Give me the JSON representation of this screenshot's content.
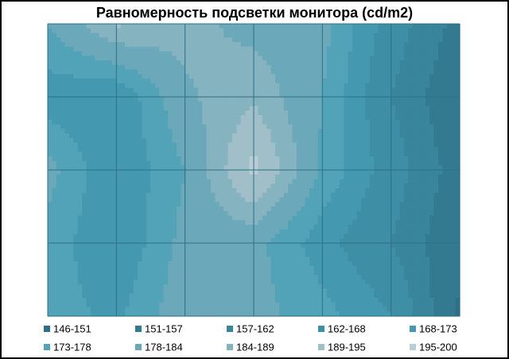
{
  "chart_data": {
    "type": "contour",
    "title": "Равномерность  подсветки монитора (cd/m2)",
    "z": [
      [
        178,
        190,
        186,
        182,
        180,
        165,
        155
      ],
      [
        170,
        168,
        183,
        188,
        178,
        162,
        152
      ],
      [
        180,
        168,
        178,
        197,
        177,
        165,
        154
      ],
      [
        176,
        168,
        180,
        180,
        170,
        162,
        152
      ],
      [
        175,
        172,
        182,
        180,
        175,
        168,
        150
      ]
    ],
    "bands": [
      {
        "min": 146,
        "max": 151,
        "label": "146-151",
        "color": "#2e6e86"
      },
      {
        "min": 151,
        "max": 157,
        "label": "151-157",
        "color": "#337a91"
      },
      {
        "min": 157,
        "max": 162,
        "label": "157-162",
        "color": "#39859b"
      },
      {
        "min": 162,
        "max": 168,
        "label": "162-168",
        "color": "#3e8fa6"
      },
      {
        "min": 168,
        "max": 173,
        "label": "168-173",
        "color": "#4499b1"
      },
      {
        "min": 173,
        "max": 178,
        "label": "173-178",
        "color": "#52a2b8"
      },
      {
        "min": 178,
        "max": 184,
        "label": "178-184",
        "color": "#6ba9ba"
      },
      {
        "min": 184,
        "max": 189,
        "label": "184-189",
        "color": "#86b3c0"
      },
      {
        "min": 189,
        "max": 195,
        "label": "189-195",
        "color": "#a0bfc9"
      },
      {
        "min": 195,
        "max": 200,
        "label": "195-200",
        "color": "#b8cdd4"
      }
    ]
  }
}
